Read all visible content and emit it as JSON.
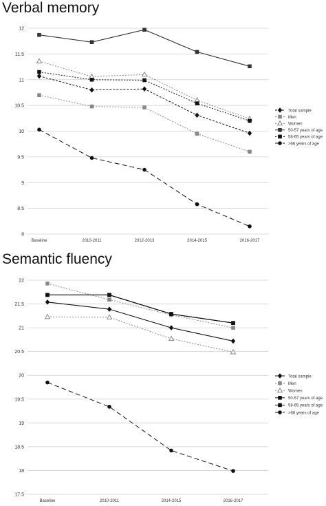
{
  "chart_data": [
    {
      "type": "line",
      "title": "Verbal memory",
      "categories": [
        "Baseline",
        "2010-2011",
        "2012-2013",
        "2014-2015",
        "2016-2017"
      ],
      "ylim": [
        8,
        12
      ],
      "yticks": [
        "8",
        "8.5",
        "9",
        "9.5",
        "10",
        "10.5",
        "11",
        "11.5",
        "12"
      ],
      "grid": true,
      "legend_position": "right",
      "series": [
        {
          "name": "Total sample",
          "values": [
            11.07,
            10.8,
            10.82,
            10.31,
            9.96
          ],
          "color": "#111111",
          "dash": "dotted-dash",
          "marker": "diamond"
        },
        {
          "name": "Men",
          "values": [
            10.7,
            10.48,
            10.46,
            9.95,
            9.6
          ],
          "color": "#888888",
          "dash": "dotted",
          "marker": "square"
        },
        {
          "name": "Women",
          "values": [
            11.36,
            11.06,
            11.1,
            10.6,
            10.24
          ],
          "color": "#888888",
          "dash": "dotted",
          "marker": "triangle"
        },
        {
          "name": "50-57 years of age",
          "values": [
            11.87,
            11.73,
            11.97,
            11.54,
            11.26
          ],
          "color": "#333333",
          "dash": "solid",
          "marker": "square"
        },
        {
          "name": "58-65 years of age",
          "values": [
            11.15,
            11.0,
            10.99,
            10.54,
            10.2
          ],
          "color": "#111111",
          "dash": "dotted",
          "marker": "square"
        },
        {
          "name": ">66 years of age",
          "values": [
            10.03,
            9.48,
            9.25,
            8.58,
            8.15
          ],
          "color": "#111111",
          "dash": "dashed",
          "marker": "circle"
        }
      ]
    },
    {
      "type": "line",
      "title": "Semantic fluency",
      "categories": [
        "Baseline",
        "2010-2011",
        "2014-2015",
        "2016-2017"
      ],
      "ylim": [
        17.5,
        22
      ],
      "yticks": [
        "17.5",
        "18",
        "18.5",
        "19",
        "19.5",
        "20",
        "20.5",
        "21",
        "21.5",
        "22"
      ],
      "grid": true,
      "legend_position": "right",
      "series": [
        {
          "name": "Total sample",
          "values": [
            21.54,
            21.39,
            21.0,
            20.72
          ],
          "color": "#111111",
          "dash": "solid",
          "marker": "diamond"
        },
        {
          "name": "Men",
          "values": [
            21.93,
            21.59,
            21.27,
            21.0
          ],
          "color": "#888888",
          "dash": "dotted",
          "marker": "square"
        },
        {
          "name": "Women",
          "values": [
            21.23,
            21.22,
            20.77,
            20.49
          ],
          "color": "#888888",
          "dash": "dotted",
          "marker": "triangle"
        },
        {
          "name": "50-57 years of age",
          "values": [
            21.69,
            21.69,
            21.29,
            21.1
          ],
          "color": "#111111",
          "dash": "solid",
          "marker": "square"
        },
        {
          "name": "58-65 years of age",
          "values": [
            21.69,
            21.69,
            21.29,
            21.1
          ],
          "color": "#111111",
          "dash": "solid",
          "marker": "square"
        },
        {
          "name": ">66 years of age",
          "values": [
            19.85,
            19.34,
            18.42,
            17.99
          ],
          "color": "#111111",
          "dash": "dashed",
          "marker": "circle"
        }
      ]
    }
  ]
}
